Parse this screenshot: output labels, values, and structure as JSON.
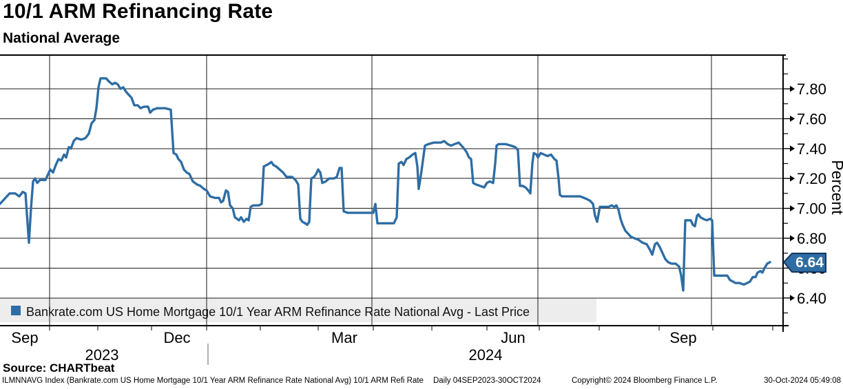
{
  "header": {
    "title": "10/1 ARM Refinancing Rate",
    "subtitle": "National Average"
  },
  "legend": {
    "label": "Bankrate.com US Home Mortgage 10/1 Year ARM Refinance Rate National Avg - Last Price"
  },
  "y_axis": {
    "title": "Percent",
    "tick_labels": [
      "7.80",
      "7.60",
      "7.40",
      "7.20",
      "7.00",
      "6.80",
      "6.60",
      "6.40"
    ]
  },
  "x_axis": {
    "month_labels": [
      "Sep",
      "Dec",
      "Mar",
      "Jun",
      "Sep"
    ],
    "year_labels": [
      "2023",
      "2024"
    ]
  },
  "last_price": {
    "value": "6.64"
  },
  "source": {
    "label": "Source: CHARTbeat"
  },
  "footer": {
    "instrument": "ILMNNAVG Index (Bankrate.com US Home Mortgage 10/1 Year ARM Refinance Rate National Avg) 10/1 ARM Refi Rate",
    "frequency_range": "Daily 04SEP2023-30OCT2024",
    "copyright": "Copyright© 2024 Bloomberg Finance L.P.",
    "timestamp": "30-Oct-2024 05:49:08"
  },
  "theme": {
    "line": "#2E6DA4",
    "badge_fill": "#2E6DA4",
    "badge_border": "#16365F",
    "badge_text": "#FFFFFF",
    "legend_bg": "#EDEDED",
    "grid": "#1A1A1A",
    "axis": "#000000",
    "year_separator": "#7F7F7F",
    "text": "#000000"
  },
  "chart_data": {
    "type": "line",
    "title": "10/1 ARM Refinancing Rate",
    "subtitle": "National Average",
    "series_name": "Bankrate.com US Home Mortgage 10/1 Year ARM Refinance Rate National Avg - Last Price",
    "ylabel": "Percent",
    "ylim": [
      6.21,
      8.03
    ],
    "y_major_ticks": [
      7.8,
      7.6,
      7.4,
      7.2,
      7.0,
      6.8,
      6.6,
      6.4
    ],
    "y_minor_ticks": [
      8.0,
      7.9,
      7.7,
      7.5,
      7.3,
      7.1,
      6.9,
      6.7,
      6.5,
      6.3
    ],
    "x_tick_labels": [
      "Sep",
      "Dec",
      "Mar",
      "Jun",
      "Sep"
    ],
    "x_range": "04SEP2023-30OCT2024",
    "grid": true,
    "legend_position": "bottom-left",
    "last_price": 6.64,
    "x_unit_note": "x = pixels across plot; 0 = 04SEP2023, 1035 = 01OCT2024, ~2.63 px per day; y = percent",
    "points": [
      [
        0,
        7.03
      ],
      [
        8,
        7.07
      ],
      [
        14,
        7.1
      ],
      [
        22,
        7.1
      ],
      [
        28,
        7.08
      ],
      [
        33,
        7.11
      ],
      [
        37,
        7.1
      ],
      [
        40,
        6.9
      ],
      [
        42,
        6.77
      ],
      [
        45,
        7.0
      ],
      [
        48,
        7.18
      ],
      [
        51,
        7.2
      ],
      [
        54,
        7.17
      ],
      [
        58,
        7.19
      ],
      [
        66,
        7.19
      ],
      [
        70,
        7.23
      ],
      [
        73,
        7.26
      ],
      [
        77,
        7.24
      ],
      [
        81,
        7.29
      ],
      [
        85,
        7.33
      ],
      [
        89,
        7.32
      ],
      [
        93,
        7.36
      ],
      [
        96,
        7.34
      ],
      [
        100,
        7.41
      ],
      [
        103,
        7.4
      ],
      [
        107,
        7.45
      ],
      [
        111,
        7.47
      ],
      [
        118,
        7.46
      ],
      [
        124,
        7.47
      ],
      [
        129,
        7.5
      ],
      [
        133,
        7.57
      ],
      [
        137,
        7.59
      ],
      [
        140,
        7.67
      ],
      [
        143,
        7.81
      ],
      [
        146,
        7.87
      ],
      [
        154,
        7.87
      ],
      [
        158,
        7.85
      ],
      [
        163,
        7.83
      ],
      [
        167,
        7.84
      ],
      [
        171,
        7.83
      ],
      [
        175,
        7.8
      ],
      [
        179,
        7.81
      ],
      [
        183,
        7.78
      ],
      [
        187,
        7.76
      ],
      [
        191,
        7.74
      ],
      [
        195,
        7.69
      ],
      [
        200,
        7.69
      ],
      [
        204,
        7.67
      ],
      [
        209,
        7.68
      ],
      [
        215,
        7.68
      ],
      [
        218,
        7.64
      ],
      [
        222,
        7.66
      ],
      [
        228,
        7.67
      ],
      [
        240,
        7.67
      ],
      [
        248,
        7.66
      ],
      [
        252,
        7.37
      ],
      [
        256,
        7.36
      ],
      [
        259,
        7.33
      ],
      [
        263,
        7.31
      ],
      [
        267,
        7.26
      ],
      [
        271,
        7.24
      ],
      [
        275,
        7.23
      ],
      [
        280,
        7.18
      ],
      [
        286,
        7.16
      ],
      [
        291,
        7.15
      ],
      [
        296,
        7.13
      ],
      [
        300,
        7.12
      ],
      [
        305,
        7.08
      ],
      [
        312,
        7.07
      ],
      [
        318,
        7.07
      ],
      [
        321,
        7.04
      ],
      [
        324,
        7.05
      ],
      [
        328,
        7.12
      ],
      [
        331,
        7.11
      ],
      [
        334,
        7.02
      ],
      [
        338,
        7.0
      ],
      [
        341,
        6.94
      ],
      [
        344,
        6.93
      ],
      [
        347,
        6.92
      ],
      [
        350,
        6.94
      ],
      [
        354,
        6.91
      ],
      [
        358,
        6.93
      ],
      [
        361,
        6.92
      ],
      [
        364,
        7.01
      ],
      [
        368,
        7.02
      ],
      [
        376,
        7.02
      ],
      [
        380,
        7.03
      ],
      [
        383,
        7.28
      ],
      [
        387,
        7.29
      ],
      [
        391,
        7.3
      ],
      [
        394,
        7.31
      ],
      [
        397,
        7.29
      ],
      [
        401,
        7.28
      ],
      [
        406,
        7.26
      ],
      [
        411,
        7.24
      ],
      [
        416,
        7.21
      ],
      [
        424,
        7.21
      ],
      [
        429,
        7.19
      ],
      [
        433,
        7.16
      ],
      [
        436,
        6.93
      ],
      [
        439,
        6.91
      ],
      [
        443,
        6.9
      ],
      [
        446,
        6.89
      ],
      [
        449,
        6.91
      ],
      [
        452,
        7.2
      ],
      [
        456,
        7.21
      ],
      [
        459,
        7.23
      ],
      [
        462,
        7.26
      ],
      [
        465,
        7.24
      ],
      [
        468,
        7.17
      ],
      [
        473,
        7.18
      ],
      [
        478,
        7.2
      ],
      [
        485,
        7.2
      ],
      [
        489,
        7.21
      ],
      [
        493,
        7.27
      ],
      [
        496,
        7.27
      ],
      [
        499,
        6.98
      ],
      [
        505,
        6.97
      ],
      [
        515,
        6.97
      ],
      [
        530,
        6.97
      ],
      [
        542,
        6.97
      ],
      [
        545,
        7.03
      ],
      [
        548,
        6.9
      ],
      [
        560,
        6.9
      ],
      [
        572,
        6.9
      ],
      [
        576,
        6.94
      ],
      [
        579,
        7.3
      ],
      [
        583,
        7.31
      ],
      [
        586,
        7.29
      ],
      [
        590,
        7.33
      ],
      [
        594,
        7.34
      ],
      [
        599,
        7.36
      ],
      [
        603,
        7.37
      ],
      [
        606,
        7.28
      ],
      [
        608,
        7.13
      ],
      [
        612,
        7.25
      ],
      [
        617,
        7.42
      ],
      [
        622,
        7.43
      ],
      [
        630,
        7.44
      ],
      [
        640,
        7.44
      ],
      [
        645,
        7.45
      ],
      [
        650,
        7.43
      ],
      [
        655,
        7.42
      ],
      [
        660,
        7.43
      ],
      [
        666,
        7.44
      ],
      [
        672,
        7.41
      ],
      [
        677,
        7.38
      ],
      [
        681,
        7.34
      ],
      [
        684,
        7.33
      ],
      [
        687,
        7.17
      ],
      [
        691,
        7.16
      ],
      [
        697,
        7.15
      ],
      [
        703,
        7.14
      ],
      [
        707,
        7.17
      ],
      [
        711,
        7.18
      ],
      [
        716,
        7.17
      ],
      [
        719,
        7.3
      ],
      [
        721,
        7.42
      ],
      [
        724,
        7.43
      ],
      [
        734,
        7.43
      ],
      [
        742,
        7.42
      ],
      [
        748,
        7.41
      ],
      [
        752,
        7.39
      ],
      [
        755,
        7.15
      ],
      [
        759,
        7.15
      ],
      [
        763,
        7.14
      ],
      [
        767,
        7.12
      ],
      [
        770,
        7.1
      ],
      [
        773,
        7.3
      ],
      [
        775,
        7.37
      ],
      [
        779,
        7.36
      ],
      [
        781,
        7.34
      ],
      [
        785,
        7.37
      ],
      [
        790,
        7.36
      ],
      [
        795,
        7.35
      ],
      [
        800,
        7.36
      ],
      [
        805,
        7.33
      ],
      [
        808,
        7.32
      ],
      [
        811,
        7.2
      ],
      [
        813,
        7.09
      ],
      [
        816,
        7.08
      ],
      [
        825,
        7.08
      ],
      [
        835,
        7.08
      ],
      [
        842,
        7.08
      ],
      [
        848,
        7.07
      ],
      [
        853,
        7.06
      ],
      [
        857,
        7.05
      ],
      [
        861,
        7.03
      ],
      [
        864,
        6.95
      ],
      [
        867,
        6.91
      ],
      [
        871,
        7.01
      ],
      [
        877,
        7.01
      ],
      [
        884,
        7.01
      ],
      [
        888,
        7.02
      ],
      [
        892,
        7.01
      ],
      [
        895,
        7.02
      ],
      [
        898,
        6.99
      ],
      [
        901,
        6.93
      ],
      [
        904,
        6.89
      ],
      [
        908,
        6.85
      ],
      [
        912,
        6.83
      ],
      [
        916,
        6.81
      ],
      [
        921,
        6.8
      ],
      [
        927,
        6.79
      ],
      [
        933,
        6.77
      ],
      [
        939,
        6.76
      ],
      [
        944,
        6.72
      ],
      [
        947,
        6.69
      ],
      [
        951,
        6.76
      ],
      [
        954,
        6.77
      ],
      [
        958,
        6.74
      ],
      [
        962,
        6.7
      ],
      [
        966,
        6.66
      ],
      [
        970,
        6.64
      ],
      [
        975,
        6.63
      ],
      [
        981,
        6.63
      ],
      [
        986,
        6.61
      ],
      [
        989,
        6.55
      ],
      [
        992,
        6.45
      ],
      [
        995,
        6.92
      ],
      [
        999,
        6.92
      ],
      [
        1003,
        6.92
      ],
      [
        1006,
        6.89
      ],
      [
        1009,
        6.88
      ],
      [
        1012,
        6.95
      ],
      [
        1014,
        6.96
      ],
      [
        1017,
        6.94
      ],
      [
        1021,
        6.93
      ],
      [
        1026,
        6.92
      ],
      [
        1031,
        6.93
      ],
      [
        1034,
        6.92
      ],
      [
        1037,
        6.55
      ],
      [
        1042,
        6.55
      ],
      [
        1050,
        6.55
      ],
      [
        1056,
        6.55
      ],
      [
        1060,
        6.52
      ],
      [
        1064,
        6.51
      ],
      [
        1068,
        6.5
      ],
      [
        1074,
        6.5
      ],
      [
        1080,
        6.49
      ],
      [
        1085,
        6.5
      ],
      [
        1089,
        6.51
      ],
      [
        1093,
        6.54
      ],
      [
        1097,
        6.54
      ],
      [
        1100,
        6.57
      ],
      [
        1104,
        6.58
      ],
      [
        1107,
        6.57
      ],
      [
        1110,
        6.6
      ],
      [
        1114,
        6.63
      ],
      [
        1118,
        6.64
      ]
    ]
  }
}
